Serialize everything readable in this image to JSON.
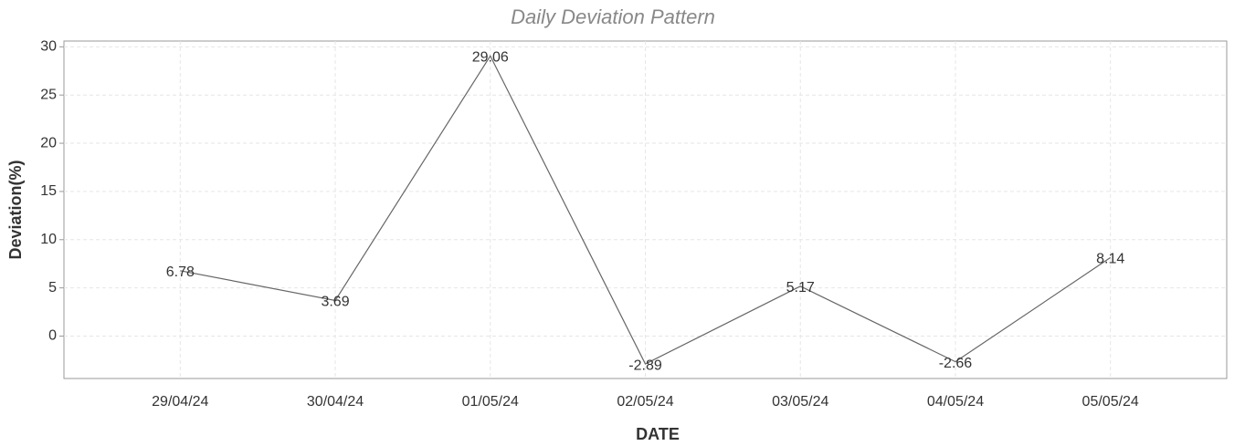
{
  "chart_data": {
    "type": "line",
    "title": "Daily Deviation Pattern",
    "x_label": "DATE",
    "y_label": "Deviation(%)",
    "categories": [
      "29/04/24",
      "30/04/24",
      "01/05/24",
      "02/05/24",
      "03/05/24",
      "04/05/24",
      "05/05/24"
    ],
    "series": [
      {
        "name": "Deviation",
        "color": "#666666",
        "values": [
          6.78,
          3.69,
          29.06,
          -2.89,
          5.17,
          -2.66,
          8.14
        ]
      }
    ],
    "ylim": [
      -4.4,
      30.6
    ],
    "yticks": [
      0,
      5,
      10,
      15,
      20,
      25,
      30
    ],
    "grid": true
  }
}
